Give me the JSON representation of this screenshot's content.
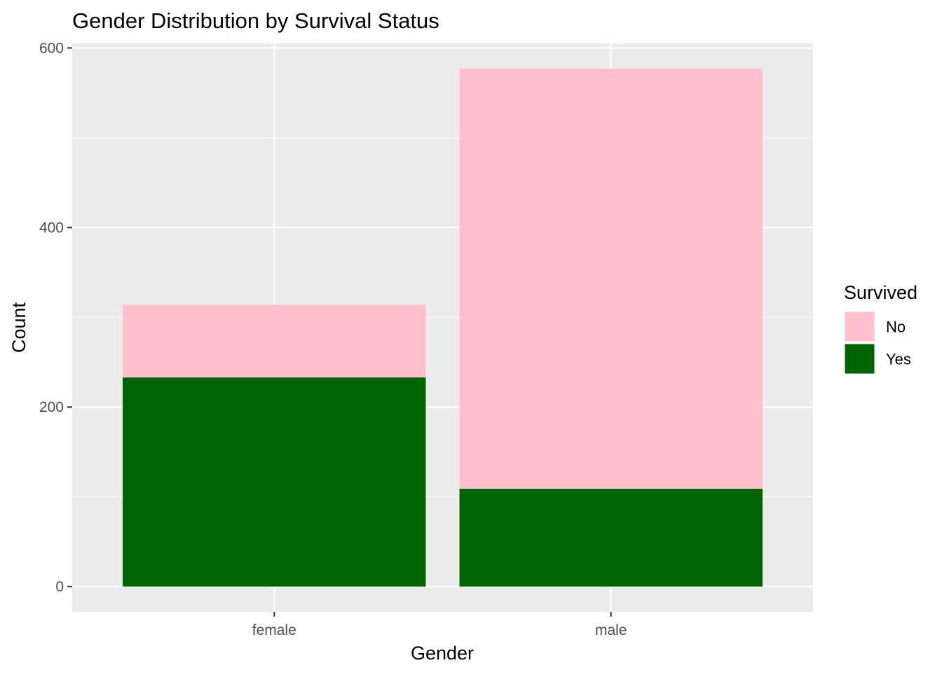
{
  "chart_data": {
    "type": "bar",
    "stacked": true,
    "title": "Gender Distribution by Survival Status",
    "xlabel": "Gender",
    "ylabel": "Count",
    "categories": [
      "female",
      "male"
    ],
    "series": [
      {
        "name": "No",
        "color": "#FFC0CB",
        "values": [
          81,
          468
        ]
      },
      {
        "name": "Yes",
        "color": "#006400",
        "values": [
          233,
          109
        ]
      }
    ],
    "ylim": [
      -28,
      605
    ],
    "yticks": [
      0,
      200,
      400,
      600
    ],
    "grid": true,
    "legend": {
      "title": "Survived",
      "position": "right",
      "items": [
        "No",
        "Yes"
      ]
    },
    "panel_background": "#EBEBEB",
    "grid_color": "#FFFFFF"
  }
}
